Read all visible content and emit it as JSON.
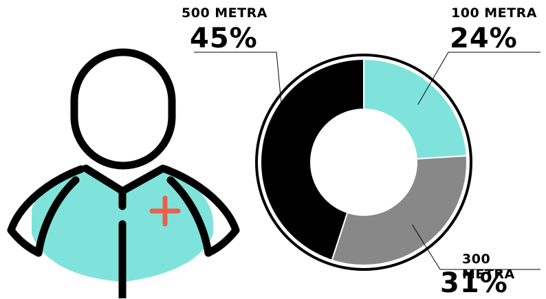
{
  "chart_data": {
    "type": "pie",
    "categories": [
      "100 METRA",
      "300 METRA",
      "500 METRA"
    ],
    "values": [
      24,
      31,
      45
    ],
    "value_labels": [
      "24%",
      "31%",
      "45%"
    ],
    "colors": [
      "#7fe3db",
      "#888888",
      "#000000"
    ],
    "donut": true,
    "legend": "callout labels"
  },
  "illustration": {
    "icon": "medic-person-icon",
    "colors": {
      "body": "#7fe3db",
      "outline": "#000000",
      "cross": "#e8604c"
    }
  }
}
